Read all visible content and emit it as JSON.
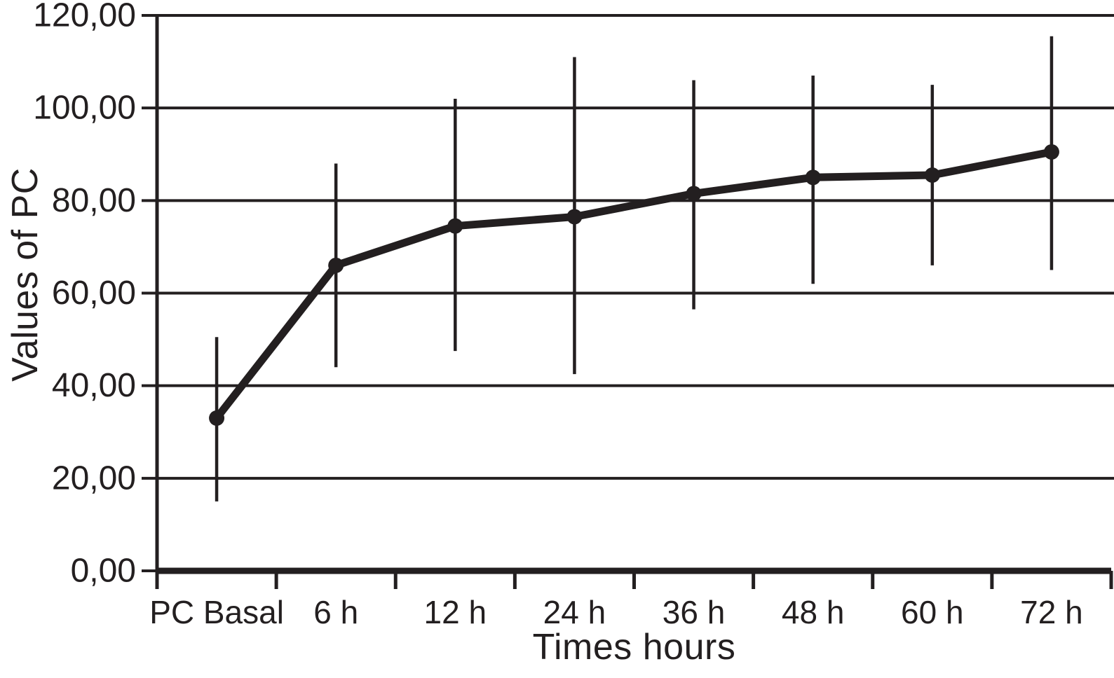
{
  "chart_data": {
    "type": "line",
    "title": "",
    "xlabel": "Times hours",
    "ylabel": "Values of PC",
    "categories": [
      "PC Basal",
      "6 h",
      "12 h",
      "24 h",
      "36 h",
      "48 h",
      "60 h",
      "72 h"
    ],
    "series": [
      {
        "name": "Values of PC",
        "values": [
          33.0,
          66.0,
          74.5,
          76.5,
          81.5,
          85.0,
          85.5,
          90.5
        ],
        "error_low": [
          15.0,
          44.0,
          47.5,
          42.5,
          56.5,
          62.0,
          66.0,
          65.0
        ],
        "error_high": [
          50.5,
          88.0,
          102.0,
          111.0,
          106.0,
          107.0,
          105.0,
          115.5
        ]
      }
    ],
    "ylim": [
      0,
      120
    ],
    "yticks": [
      0,
      20,
      40,
      60,
      80,
      100,
      120
    ],
    "ytick_labels": [
      "0,00",
      "20,00",
      "40,00",
      "60,00",
      "80,00",
      "100,00",
      "120,00"
    ],
    "decimal_separator": ",",
    "grid": true,
    "gridlines": "horizontal",
    "legend_position": "none",
    "marker": "circle",
    "line_color": "#231f20",
    "background_color": "#ffffff"
  }
}
